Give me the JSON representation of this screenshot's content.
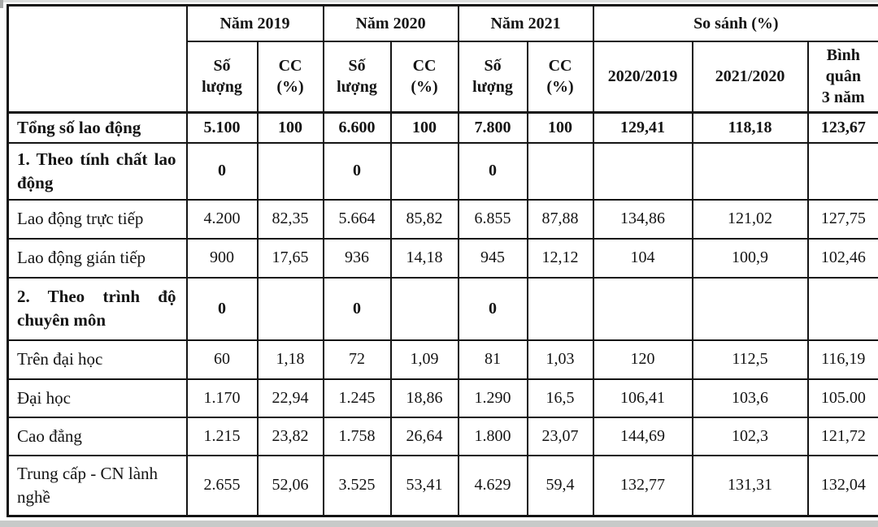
{
  "page": {
    "background_color": "#ffffff",
    "border_color": "#141414",
    "bottom_strip_color": "#c8cac9"
  },
  "table": {
    "header": {
      "corner": "",
      "groups": [
        {
          "label": "Năm 2019",
          "cols": [
            [
              "Số",
              "lượng"
            ],
            [
              "CC",
              "(%)"
            ]
          ]
        },
        {
          "label": "Năm 2020",
          "cols": [
            [
              "Số",
              "lượng"
            ],
            [
              "CC",
              "(%)"
            ]
          ]
        },
        {
          "label": "Năm 2021",
          "cols": [
            [
              "Số",
              "lượng"
            ],
            [
              "CC",
              "(%)"
            ]
          ]
        },
        {
          "label": "So sánh (%)",
          "cols": [
            [
              "2020/2019"
            ],
            [
              "2021/2020"
            ],
            [
              "Bình",
              "quân",
              "3 năm"
            ]
          ]
        }
      ]
    },
    "rows": [
      {
        "label": "Tổng số lao động",
        "bold": true,
        "justify": false,
        "cells": [
          "5.100",
          "100",
          "6.600",
          "100",
          "7.800",
          "100",
          "129,41",
          "118,18",
          "123,67"
        ]
      },
      {
        "label": "1. Theo tính chất lao động",
        "bold": true,
        "justify": true,
        "cells": [
          "0",
          "",
          "0",
          "",
          "0",
          "",
          "",
          "",
          ""
        ]
      },
      {
        "label": "Lao động trực tiếp",
        "bold": false,
        "justify": false,
        "cells": [
          "4.200",
          "82,35",
          "5.664",
          "85,82",
          "6.855",
          "87,88",
          "134,86",
          "121,02",
          "127,75"
        ]
      },
      {
        "label": "Lao động gián tiếp",
        "bold": false,
        "justify": false,
        "cells": [
          "900",
          "17,65",
          "936",
          "14,18",
          "945",
          "12,12",
          "104",
          "100,9",
          "102,46"
        ]
      },
      {
        "label": "2. Theo trình độ chuyên môn",
        "bold": true,
        "justify": true,
        "cells": [
          "0",
          "",
          "0",
          "",
          "0",
          "",
          "",
          "",
          ""
        ]
      },
      {
        "label": "Trên đại học",
        "bold": false,
        "justify": false,
        "cells": [
          "60",
          "1,18",
          "72",
          "1,09",
          "81",
          "1,03",
          "120",
          "112,5",
          "116,19"
        ]
      },
      {
        "label": "Đại học",
        "bold": false,
        "justify": false,
        "cells": [
          "1.170",
          "22,94",
          "1.245",
          "18,86",
          "1.290",
          "16,5",
          "106,41",
          "103,6",
          "105.00"
        ]
      },
      {
        "label": "Cao đẳng",
        "bold": false,
        "justify": false,
        "cells": [
          "1.215",
          "23,82",
          "1.758",
          "26,64",
          "1.800",
          "23,07",
          "144,69",
          "102,3",
          "121,72"
        ]
      },
      {
        "label": "Trung cấp - CN lành nghề",
        "bold": false,
        "justify": false,
        "cells": [
          "2.655",
          "52,06",
          "3.525",
          "53,41",
          "4.629",
          "59,4",
          "132,77",
          "131,31",
          "132,04"
        ]
      }
    ]
  }
}
